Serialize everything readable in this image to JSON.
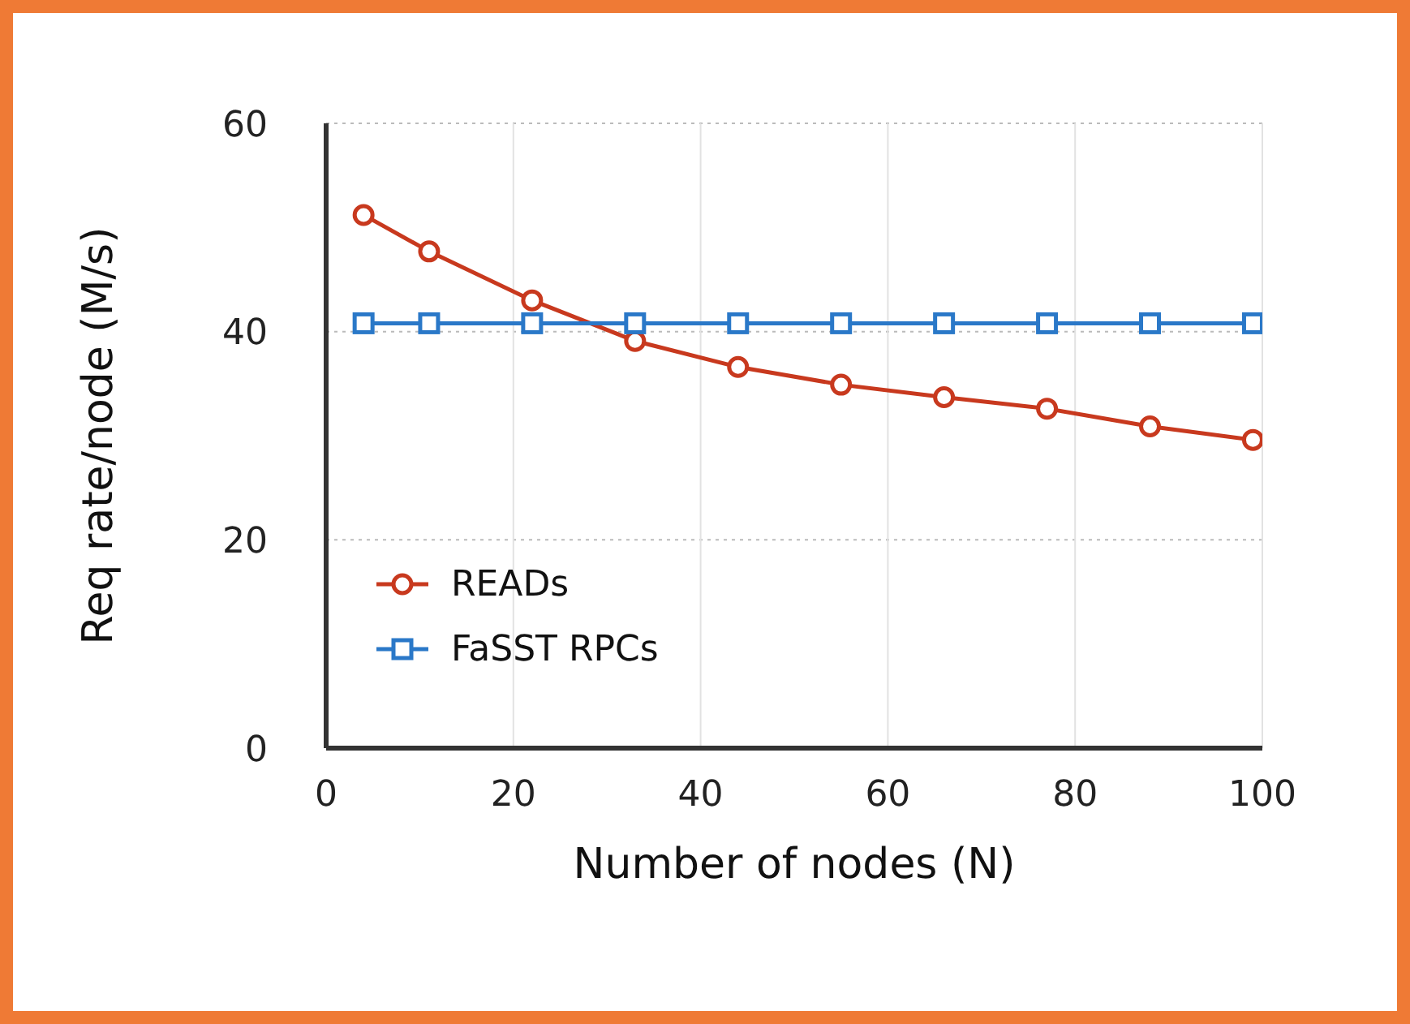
{
  "chart_data": {
    "type": "line",
    "xlabel": "Number of nodes (N)",
    "ylabel": "Req rate/node (M/s)",
    "x": [
      4,
      11,
      22,
      33,
      44,
      55,
      66,
      77,
      88,
      99
    ],
    "series": [
      {
        "name": "READs",
        "color": "#c8391e",
        "marker": "circle",
        "values": [
          51.2,
          47.7,
          43.0,
          39.1,
          36.6,
          34.9,
          33.7,
          32.6,
          30.9,
          29.6
        ]
      },
      {
        "name": "FaSST RPCs",
        "color": "#2a78c8",
        "marker": "square",
        "values": [
          40.8,
          40.8,
          40.8,
          40.8,
          40.8,
          40.8,
          40.8,
          40.8,
          40.8,
          40.8
        ]
      }
    ],
    "xlim": [
      0,
      100
    ],
    "xticks": [
      0,
      20,
      40,
      60,
      80,
      100
    ],
    "ylim": [
      0,
      60
    ],
    "yticks": [
      0,
      20,
      40,
      60
    ],
    "grid": true,
    "legend": "bottom left",
    "line_style": "solid"
  }
}
